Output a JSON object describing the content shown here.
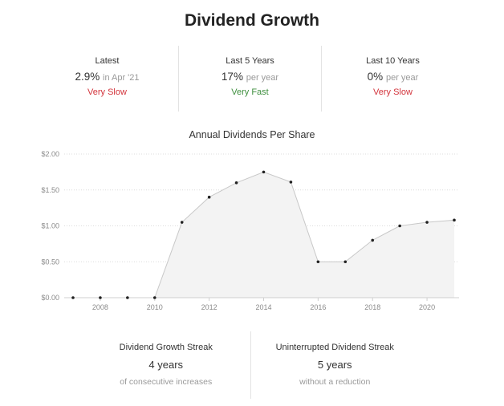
{
  "title": "Dividend Growth",
  "stats": [
    {
      "label": "Latest",
      "value": "2.9%",
      "suffix": "in Apr '21",
      "rating": "Very Slow",
      "rating_color": "#d3343c"
    },
    {
      "label": "Last 5 Years",
      "value": "17%",
      "suffix": "per year",
      "rating": "Very Fast",
      "rating_color": "#3f8f3f"
    },
    {
      "label": "Last 10 Years",
      "value": "0%",
      "suffix": "per year",
      "rating": "Very Slow",
      "rating_color": "#d3343c"
    }
  ],
  "chart_data": {
    "type": "area",
    "title": "Annual Dividends Per Share",
    "x": [
      2007,
      2008,
      2009,
      2010,
      2011,
      2012,
      2013,
      2014,
      2015,
      2016,
      2017,
      2018,
      2019,
      2020,
      2021
    ],
    "values": [
      0,
      0,
      0,
      0,
      1.05,
      1.4,
      1.6,
      1.75,
      1.61,
      0.5,
      0.5,
      0.8,
      1.0,
      1.05,
      1.08
    ],
    "xticks": [
      "2008",
      "2010",
      "2012",
      "2014",
      "2016",
      "2018",
      "2020"
    ],
    "yticks": [
      "$0.00",
      "$0.50",
      "$1.00",
      "$1.50",
      "$2.00"
    ],
    "ylim": [
      0,
      2.0
    ],
    "xlim": [
      2007,
      2021
    ],
    "grid": true,
    "line_color": "#c8c8c8",
    "fill_color": "#f3f3f3",
    "point_color": "#222222"
  },
  "streaks": [
    {
      "label": "Dividend Growth Streak",
      "value": "4 years",
      "sub": "of consecutive increases"
    },
    {
      "label": "Uninterrupted Dividend Streak",
      "value": "5 years",
      "sub": "without a reduction"
    }
  ]
}
